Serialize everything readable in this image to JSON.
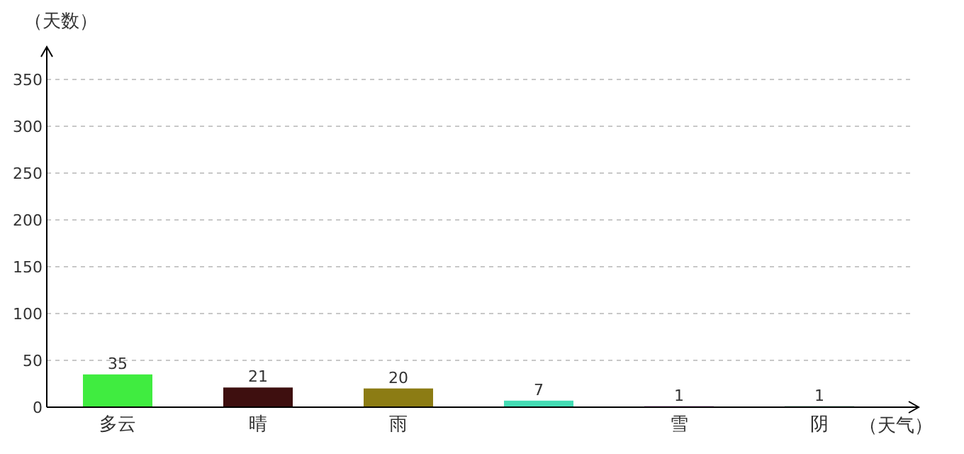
{
  "chart_data": {
    "type": "bar",
    "ylabel": "（天数）",
    "xlabel": "（天气）",
    "categories": [
      "多云",
      "晴",
      "雨",
      null,
      "雪",
      "阴"
    ],
    "values": [
      35,
      21,
      20,
      7,
      1,
      1
    ],
    "colors": [
      "#40ec40",
      "#3e0f0f",
      "#8c7c14",
      "#44dcb4",
      "#8a1a8a",
      "#2e9a60"
    ],
    "ylim": [
      0,
      350
    ],
    "yticks": [
      0,
      50,
      100,
      150,
      200,
      250,
      300,
      350
    ],
    "grid": "y",
    "data_labels": true
  }
}
